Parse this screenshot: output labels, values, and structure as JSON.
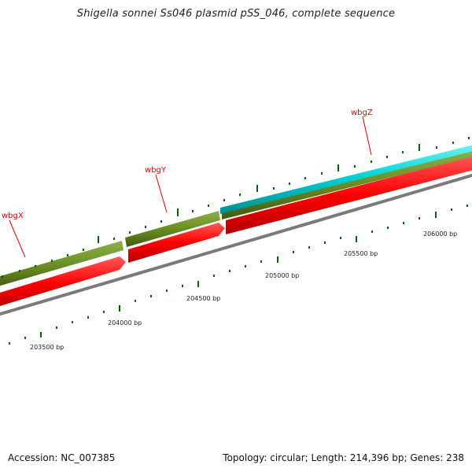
{
  "title": "Shigella sonnei Ss046 plasmid pSS_046, complete sequence",
  "footer": {
    "accession": "Accession: NC_007385",
    "stats": "Topology: circular; Length: 214,396 bp; Genes: 238"
  },
  "genes": [
    {
      "name": "wbgX"
    },
    {
      "name": "wbgY"
    },
    {
      "name": "wbgZ"
    }
  ],
  "position_ticks": [
    {
      "label": "203500 bp"
    },
    {
      "label": "204000 bp"
    },
    {
      "label": "204500 bp"
    },
    {
      "label": "205000 bp"
    },
    {
      "label": "205500 bp"
    },
    {
      "label": "206000 bp"
    }
  ],
  "colors": {
    "cds_forward": "#6b8e23",
    "cds_reverse": "#ff0000",
    "rna_feature": "#00ced1",
    "backbone": "#808080",
    "minor_ticks": "#006400",
    "gene_label": "#e00000"
  }
}
